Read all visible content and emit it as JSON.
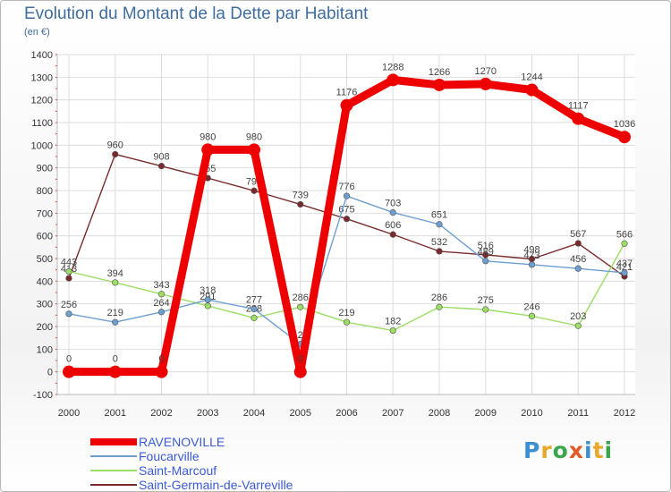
{
  "title": "Evolution du Montant de la Dette par Habitant",
  "unit": "(en €)",
  "logo": {
    "letters": [
      {
        "char": "P",
        "color": "#3c8fd1"
      },
      {
        "char": "r",
        "color": "#e8a82a"
      },
      {
        "char": "o",
        "color": "#3aa54b"
      },
      {
        "char": "x",
        "color": "#e05a2a"
      },
      {
        "char": "i",
        "color": "#3c8fd1"
      },
      {
        "char": "t",
        "color": "#e8a82a"
      },
      {
        "char": "i",
        "color": "#3aa54b"
      }
    ]
  },
  "chart_data": {
    "type": "line",
    "title": "Evolution du Montant de la Dette par Habitant",
    "ylabel": "(en €)",
    "xlabel": "",
    "x": [
      "2000",
      "2001",
      "2002",
      "2003",
      "2004",
      "2005",
      "2006",
      "2007",
      "2008",
      "2009",
      "2010",
      "2011",
      "2012"
    ],
    "ylim": [
      -100,
      1400
    ],
    "yticks": [
      -100,
      0,
      100,
      200,
      300,
      400,
      500,
      600,
      700,
      800,
      900,
      1000,
      1100,
      1200,
      1300,
      1400
    ],
    "grid": true,
    "legend": "bottom-left",
    "series": [
      {
        "name": "RAVENOVILLE",
        "color": "#ee0000",
        "values": [
          0,
          0,
          0,
          980,
          980,
          0,
          1176,
          1288,
          1266,
          1270,
          1244,
          1117,
          1036
        ]
      },
      {
        "name": "Foucarville",
        "color": "#6d9ed0",
        "values": [
          256,
          219,
          264,
          318,
          277,
          122,
          776,
          703,
          651,
          489,
          473,
          456,
          437
        ]
      },
      {
        "name": "Saint-Marcouf",
        "color": "#9bde63",
        "values": [
          443,
          394,
          343,
          291,
          238,
          286,
          219,
          182,
          286,
          275,
          246,
          203,
          566
        ]
      },
      {
        "name": "Saint-Germain-de-Varreville",
        "color": "#7a2a2a",
        "values": [
          413,
          960,
          908,
          855,
          799,
          739,
          675,
          606,
          532,
          516,
          498,
          567,
          421
        ]
      }
    ]
  }
}
